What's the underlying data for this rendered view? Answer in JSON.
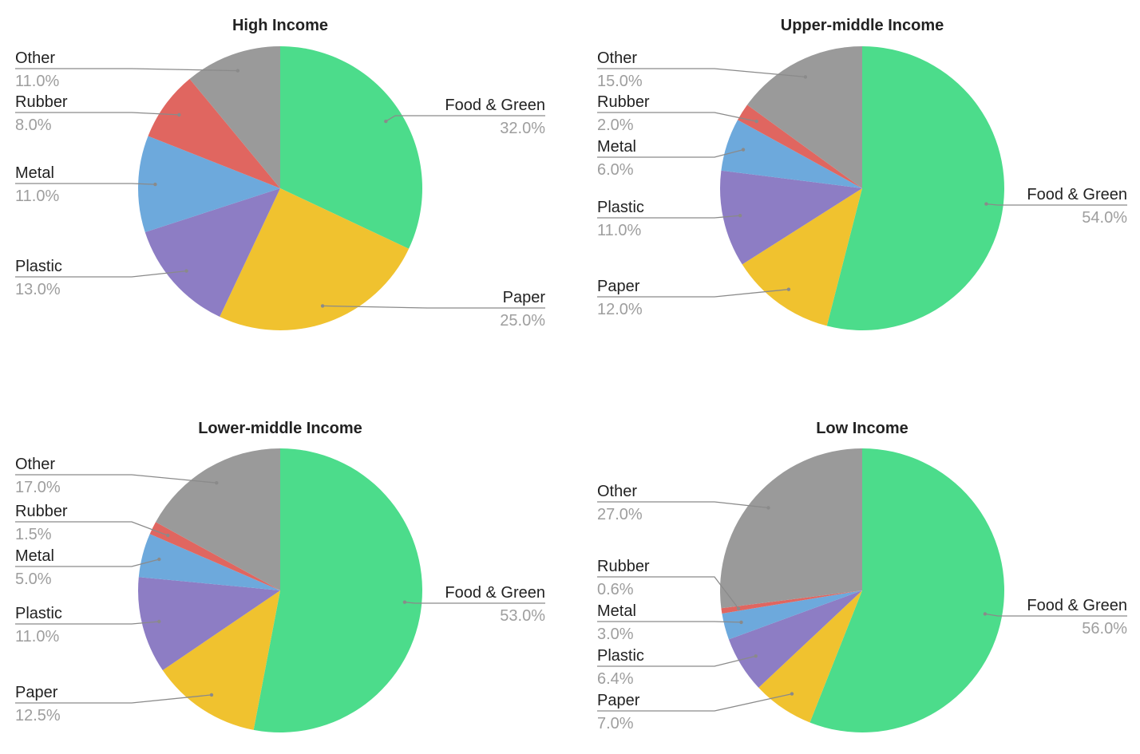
{
  "chart_data": [
    {
      "type": "pie",
      "title": "High Income",
      "slices": [
        {
          "label": "Food & Green",
          "value": 32.0,
          "display": "32.0%",
          "color": "#4cdc8b"
        },
        {
          "label": "Paper",
          "value": 25.0,
          "display": "25.0%",
          "color": "#f0c22f"
        },
        {
          "label": "Plastic",
          "value": 13.0,
          "display": "13.0%",
          "color": "#8d7dc4"
        },
        {
          "label": "Metal",
          "value": 11.0,
          "display": "11.0%",
          "color": "#6da9dc"
        },
        {
          "label": "Rubber",
          "value": 8.0,
          "display": "8.0%",
          "color": "#e06660"
        },
        {
          "label": "Other",
          "value": 11.0,
          "display": "11.0%",
          "color": "#9a9a9a"
        }
      ]
    },
    {
      "type": "pie",
      "title": "Upper-middle Income",
      "slices": [
        {
          "label": "Food & Green",
          "value": 54.0,
          "display": "54.0%",
          "color": "#4cdc8b"
        },
        {
          "label": "Paper",
          "value": 12.0,
          "display": "12.0%",
          "color": "#f0c22f"
        },
        {
          "label": "Plastic",
          "value": 11.0,
          "display": "11.0%",
          "color": "#8d7dc4"
        },
        {
          "label": "Metal",
          "value": 6.0,
          "display": "6.0%",
          "color": "#6da9dc"
        },
        {
          "label": "Rubber",
          "value": 2.0,
          "display": "2.0%",
          "color": "#e06660"
        },
        {
          "label": "Other",
          "value": 15.0,
          "display": "15.0%",
          "color": "#9a9a9a"
        }
      ]
    },
    {
      "type": "pie",
      "title": "Lower-middle Income",
      "slices": [
        {
          "label": "Food & Green",
          "value": 53.0,
          "display": "53.0%",
          "color": "#4cdc8b"
        },
        {
          "label": "Paper",
          "value": 12.5,
          "display": "12.5%",
          "color": "#f0c22f"
        },
        {
          "label": "Plastic",
          "value": 11.0,
          "display": "11.0%",
          "color": "#8d7dc4"
        },
        {
          "label": "Metal",
          "value": 5.0,
          "display": "5.0%",
          "color": "#6da9dc"
        },
        {
          "label": "Rubber",
          "value": 1.5,
          "display": "1.5%",
          "color": "#e06660"
        },
        {
          "label": "Other",
          "value": 17.0,
          "display": "17.0%",
          "color": "#9a9a9a"
        }
      ]
    },
    {
      "type": "pie",
      "title": "Low Income",
      "slices": [
        {
          "label": "Food & Green",
          "value": 56.0,
          "display": "56.0%",
          "color": "#4cdc8b"
        },
        {
          "label": "Paper",
          "value": 7.0,
          "display": "7.0%",
          "color": "#f0c22f"
        },
        {
          "label": "Plastic",
          "value": 6.4,
          "display": "6.4%",
          "color": "#8d7dc4"
        },
        {
          "label": "Metal",
          "value": 3.0,
          "display": "3.0%",
          "color": "#6da9dc"
        },
        {
          "label": "Rubber",
          "value": 0.6,
          "display": "0.6%",
          "color": "#e06660"
        },
        {
          "label": "Other",
          "value": 27.0,
          "display": "27.0%",
          "color": "#9a9a9a"
        }
      ]
    }
  ]
}
